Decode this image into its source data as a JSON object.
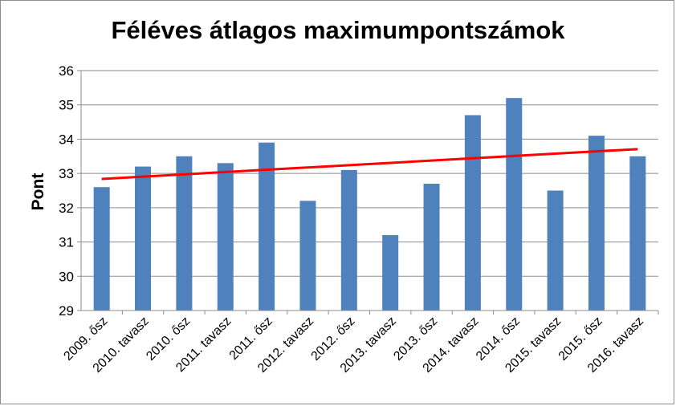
{
  "chart_data": {
    "type": "bar",
    "title": "Féléves átlagos maximumpontszámok",
    "xlabel": "",
    "ylabel": "Pont",
    "ylim": [
      29,
      36
    ],
    "yticks": [
      29,
      30,
      31,
      32,
      33,
      34,
      35,
      36
    ],
    "grid": true,
    "legend": "none",
    "categories": [
      "2009. ősz",
      "2010. tavasz",
      "2010. ősz",
      "2011. tavasz",
      "2011. ősz",
      "2012. tavasz",
      "2012. ősz",
      "2013. tavasz",
      "2013. ősz",
      "2014. tavasz",
      "2014. ősz",
      "2015. tavasz",
      "2015. ősz",
      "2016. tavasz"
    ],
    "values": [
      32.6,
      33.2,
      33.5,
      33.3,
      33.9,
      32.2,
      33.1,
      31.2,
      32.7,
      34.7,
      35.2,
      32.5,
      34.1,
      33.5
    ],
    "trendline": {
      "type": "linear",
      "start": 32.84,
      "end": 33.71
    },
    "colors": {
      "bar": "#4f81bd",
      "trend": "#ff0000",
      "grid": "#8c8c8c"
    }
  }
}
